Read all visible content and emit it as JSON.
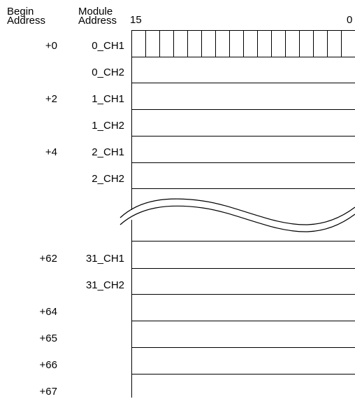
{
  "headers": {
    "begin_address_line1": "Begin",
    "begin_address_line2": "Address",
    "module_address_line1": "Module",
    "module_address_line2": "Address",
    "bit_high": "15",
    "bit_low": "0"
  },
  "rows_top": [
    {
      "begin": "+0",
      "module": "0_CH1"
    },
    {
      "begin": "",
      "module": "0_CH2"
    },
    {
      "begin": "+2",
      "module": "1_CH1"
    },
    {
      "begin": "",
      "module": "1_CH2"
    },
    {
      "begin": "+4",
      "module": "2_CH1"
    },
    {
      "begin": "",
      "module": "2_CH2"
    }
  ],
  "rows_bottom": [
    {
      "begin": "+62",
      "module": "31_CH1"
    },
    {
      "begin": "",
      "module": "31_CH2"
    },
    {
      "begin": "+64",
      "module": ""
    },
    {
      "begin": "+65",
      "module": ""
    },
    {
      "begin": "+66",
      "module": ""
    },
    {
      "begin": "+67",
      "module": ""
    }
  ],
  "bit_cells": 16
}
